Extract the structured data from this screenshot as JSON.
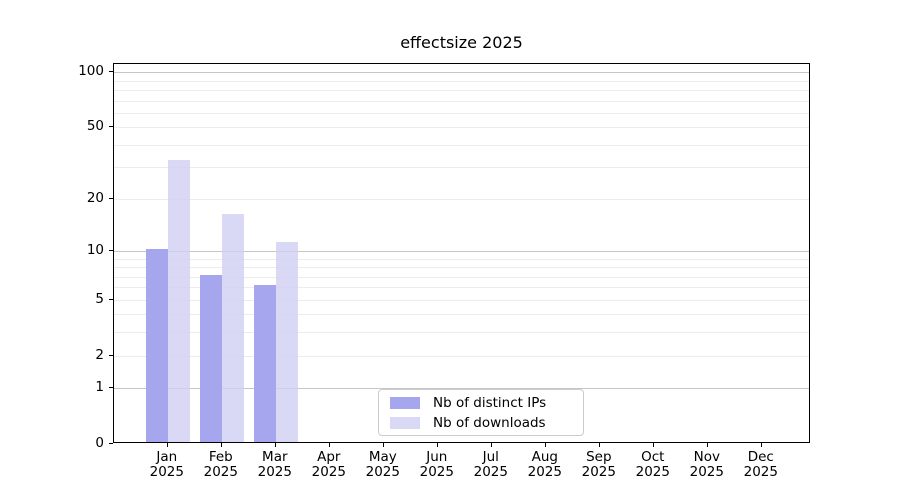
{
  "title": "effectsize 2025",
  "chart_data": {
    "type": "bar",
    "title": "effectsize 2025",
    "xlabel": "",
    "ylabel": "",
    "y_scale": "log1p",
    "ylim": [
      0,
      111
    ],
    "grid": "horizontal",
    "legend_position": "inside-bottom-center",
    "categories": [
      "Jan",
      "Feb",
      "Mar",
      "Apr",
      "May",
      "Jun",
      "Jul",
      "Aug",
      "Sep",
      "Oct",
      "Nov",
      "Dec"
    ],
    "year_label": "2025",
    "series": [
      {
        "name": "Nb of distinct IPs",
        "color": "#a6a6ee",
        "values": [
          10,
          7,
          6,
          0,
          0,
          0,
          0,
          0,
          0,
          0,
          0,
          0
        ]
      },
      {
        "name": "Nb of downloads",
        "color": "#d9d9f6",
        "values": [
          32,
          16,
          11,
          0,
          0,
          0,
          0,
          0,
          0,
          0,
          0,
          0
        ]
      }
    ],
    "y_ticks": [
      0,
      1,
      2,
      5,
      10,
      20,
      50,
      100
    ],
    "y_major_grid": [
      1,
      10,
      100
    ],
    "y_minor_grid": [
      2,
      3,
      4,
      5,
      6,
      7,
      8,
      9,
      20,
      30,
      40,
      50,
      60,
      70,
      80,
      90
    ]
  }
}
